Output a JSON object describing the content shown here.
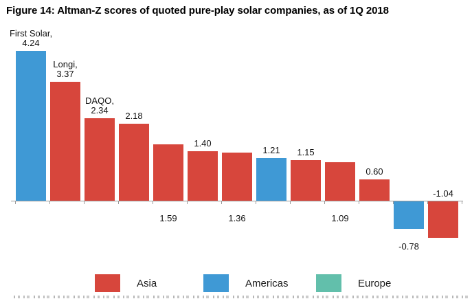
{
  "figure": {
    "title": "Figure 14: Altman-Z scores of quoted pure-play solar companies, as of 1Q 2018"
  },
  "chart_data": {
    "type": "bar",
    "title": "Figure 14: Altman-Z scores of quoted pure-play solar companies, as of 1Q 2018",
    "xlabel": "",
    "ylabel": "",
    "ylim": [
      -1.3,
      4.6
    ],
    "grid": false,
    "legend_position": "bottom",
    "bars": [
      {
        "name": "First Solar,",
        "value": 4.24,
        "value_label": "4.24",
        "region": "Americas",
        "label_position": "above"
      },
      {
        "name": "Longi,",
        "value": 3.37,
        "value_label": "3.37",
        "region": "Asia",
        "label_position": "above"
      },
      {
        "name": "DAQO,",
        "value": 2.34,
        "value_label": "2.34",
        "region": "Asia",
        "label_position": "above"
      },
      {
        "name": "",
        "value": 2.18,
        "value_label": "2.18",
        "region": "Asia",
        "label_position": "above"
      },
      {
        "name": "",
        "value": 1.59,
        "value_label": "1.59",
        "region": "Asia",
        "label_position": "below-axis"
      },
      {
        "name": "",
        "value": 1.4,
        "value_label": "1.40",
        "region": "Asia",
        "label_position": "above"
      },
      {
        "name": "",
        "value": 1.36,
        "value_label": "1.36",
        "region": "Asia",
        "label_position": "below-axis"
      },
      {
        "name": "",
        "value": 1.21,
        "value_label": "1.21",
        "region": "Americas",
        "label_position": "above"
      },
      {
        "name": "",
        "value": 1.15,
        "value_label": "1.15",
        "region": "Asia",
        "label_position": "above"
      },
      {
        "name": "",
        "value": 1.09,
        "value_label": "1.09",
        "region": "Asia",
        "label_position": "below-axis"
      },
      {
        "name": "",
        "value": 0.6,
        "value_label": "0.60",
        "region": "Asia",
        "label_position": "above"
      },
      {
        "name": "",
        "value": -0.78,
        "value_label": "-0.78",
        "region": "Americas",
        "label_position": "below-bar"
      },
      {
        "name": "",
        "value": -1.04,
        "value_label": "-1.04",
        "region": "Asia",
        "label_position": "above-axis"
      }
    ],
    "legend": [
      {
        "label": "Asia",
        "color": "#d7463c"
      },
      {
        "label": "Americas",
        "color": "#3f99d5"
      },
      {
        "label": "Europe",
        "color": "#62bfab"
      }
    ]
  }
}
